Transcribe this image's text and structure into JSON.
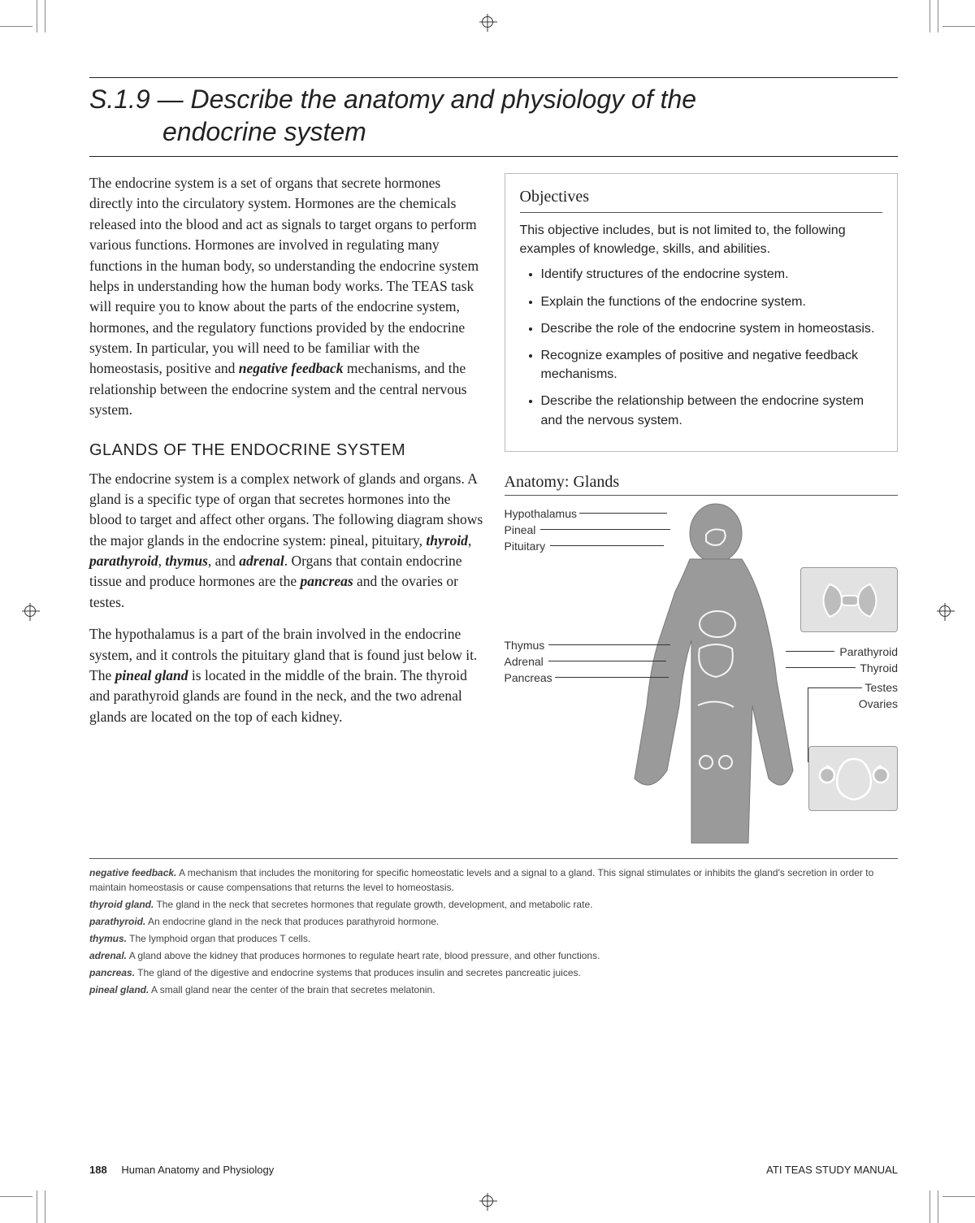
{
  "title_line1": "S.1.9 — Describe the anatomy and physiology of the",
  "title_line2": "endocrine system",
  "intro_html": "The endocrine system is a set of organs that secrete hormones directly into the circulatory system. Hormones are the chemicals released into the blood and act as signals to target organs to perform various functions. Hormones are involved in regulating many functions in the human body, so understanding the endocrine system helps in understanding how the human body works. The TEAS task will require you to know about the parts of the endocrine system, hormones, and the regulatory functions provided by the endocrine system. In particular, you will need to be familiar with the homeostasis, positive and <span class=\"bi\">negative feedback</span> mechanisms, and the relationship between the endocrine system and the central nervous system.",
  "section_heading": "GLANDS OF THE ENDOCRINE SYSTEM",
  "glands_p1_html": "The endocrine system is a complex network of glands and organs. A gland is a specific type of organ that secretes hormones into the blood to target and affect other organs. The following diagram shows the major glands in the endocrine system: pineal, pituitary, <span class=\"bi\">thyroid</span>, <span class=\"bi\">parathyroid</span>, <span class=\"bi\">thymus</span>, and <span class=\"bi\">adrenal</span>. Organs that contain endocrine tissue and produce hormones are the <span class=\"bi\">pancreas</span> and the ovaries or testes.",
  "glands_p2_html": "The hypothalamus is a part of the brain involved in the endocrine system, and it controls the pituitary gland that is found just below it. The <span class=\"bi\">pineal gland</span> is located in the middle of the brain. The thyroid and parathyroid glands are found in the neck, and the two adrenal glands are located on the top of each kidney.",
  "objectives": {
    "heading": "Objectives",
    "lead": "This objective includes, but is not limited to, the following examples of knowledge, skills, and abilities.",
    "items": [
      "Identify structures of the endocrine system.",
      "Explain the functions of the endocrine system.",
      "Describe the role of the endocrine system in homeostasis.",
      "Recognize examples of positive and negative feedback mechanisms.",
      "Describe the relationship between the endocrine system and the nervous system."
    ]
  },
  "figure": {
    "title": "Anatomy: Glands",
    "labels_left": [
      "Hypothalamus",
      "Pineal",
      "Pituitary",
      "Thymus",
      "Adrenal",
      "Pancreas"
    ],
    "labels_right": [
      "Parathyroid",
      "Thyroid",
      "Testes",
      "Ovaries"
    ]
  },
  "definitions": [
    {
      "term": "negative feedback.",
      "text": "A mechanism that includes the monitoring for specific homeostatic levels and a signal to a gland.  This signal stimulates or inhibits the gland's secretion in order to maintain homeostasis or cause compensations that returns the level to homeostasis."
    },
    {
      "term": "thyroid gland.",
      "text": "The gland in the neck that secretes hormones that regulate growth, development, and metabolic rate."
    },
    {
      "term": "parathyroid.",
      "text": "An endocrine gland in the neck that produces parathyroid hormone."
    },
    {
      "term": "thymus.",
      "text": "The lymphoid organ that produces T cells."
    },
    {
      "term": "adrenal.",
      "text": "A gland above the kidney that produces hormones to regulate heart rate, blood pressure, and other functions."
    },
    {
      "term": "pancreas.",
      "text": "The gland of the digestive and endocrine systems that produces insulin and secretes pancreatic juices."
    },
    {
      "term": "pineal gland.",
      "text": "A small gland near the center of the brain that secretes melatonin."
    }
  ],
  "footer": {
    "page": "188",
    "chapter": "Human Anatomy and Physiology",
    "book": "ATI TEAS STUDY MANUAL"
  },
  "colors": {
    "rule": "#222222",
    "box_border": "#bbbbbb",
    "fig_bg": "#e2e2e2",
    "text": "#222222"
  }
}
